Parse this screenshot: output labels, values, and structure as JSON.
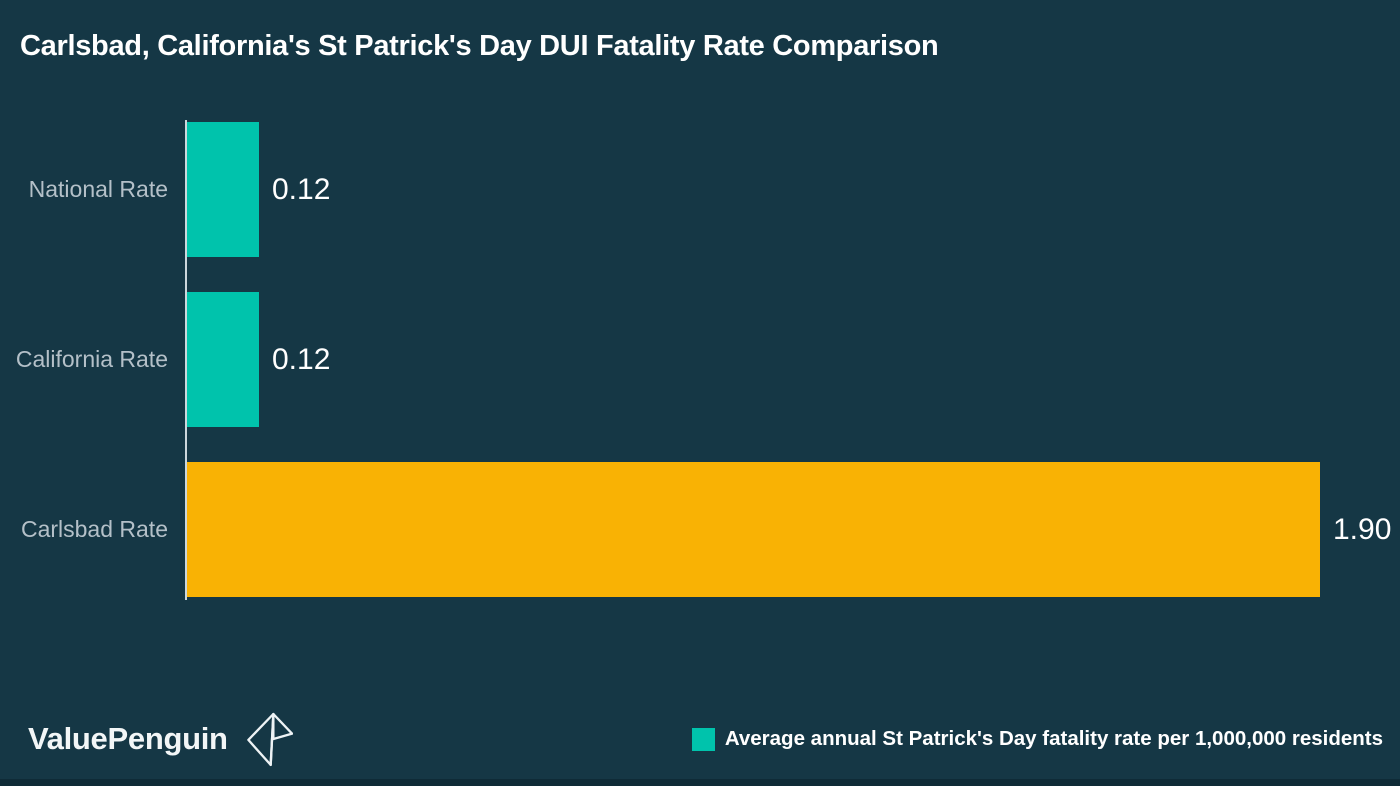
{
  "title": "Carlsbad, California's St Patrick's Day DUI Fatality Rate Comparison",
  "colors": {
    "background": "#153745",
    "background_bottom_strip": "#0f2b37",
    "teal": "#00c3ac",
    "orange": "#f9b204",
    "axis_line": "#ccd7dc",
    "category_label": "#b4c0c8",
    "value_label": "#ffffff",
    "title_text": "#ffffff"
  },
  "chart_data": {
    "type": "bar",
    "orientation": "horizontal",
    "title": "Carlsbad, California's St Patrick's Day DUI Fatality Rate Comparison",
    "categories": [
      "National Rate",
      "California Rate",
      "Carlsbad Rate"
    ],
    "values": [
      0.12,
      0.12,
      1.9
    ],
    "value_labels": [
      "0.12",
      "0.12",
      "1.90"
    ],
    "bar_colors": [
      "#00c3ac",
      "#00c3ac",
      "#f9b204"
    ],
    "xlabel": "",
    "ylabel": "",
    "xlim": [
      0,
      1.9
    ],
    "grid": false,
    "legend_position": "bottom-right",
    "legend": [
      {
        "label": "Average annual St Patrick's Day fatality rate per 1,000,000 residents",
        "color": "#00c3ac"
      }
    ]
  },
  "footer": {
    "brand": "ValuePenguin",
    "logo": "origami-penguin-outline-icon"
  }
}
